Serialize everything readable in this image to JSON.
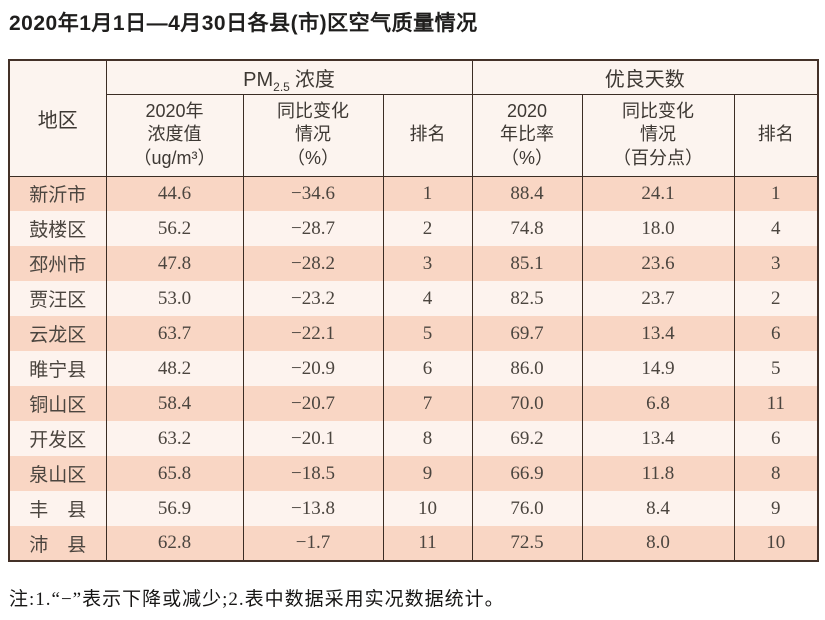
{
  "page": {
    "title": "2020年1月1日—4月30日各县(市)区空气质量情况",
    "note": "注:1.“−”表示下降或减少;2.表中数据采用实况数据统计。"
  },
  "colors": {
    "stripe_dark": "#f9d6c4",
    "stripe_light": "#fdf3ee",
    "header_bg": "#fcf4ef",
    "line": "#3b2d24",
    "frame": "#443128"
  },
  "table": {
    "region_header": "地区",
    "group_pm25": {
      "base": "PM",
      "sub": "2.5",
      "rest": "浓度"
    },
    "group_days": "优良天数",
    "sub_headers": {
      "pm_value": "2020年\n浓度值\n（ug/m³）",
      "pm_change": "同比变化\n情况\n（%）",
      "pm_rank": "排名",
      "days_ratio": "2020\n年比率\n（%）",
      "days_change": "同比变化\n情况\n（百分点）",
      "days_rank": "排名"
    },
    "rows": [
      {
        "region": "新沂市",
        "pm_value": "44.6",
        "pm_change": "−34.6",
        "pm_rank": "1",
        "days_ratio": "88.4",
        "days_change": "24.1",
        "days_rank": "1"
      },
      {
        "region": "鼓楼区",
        "pm_value": "56.2",
        "pm_change": "−28.7",
        "pm_rank": "2",
        "days_ratio": "74.8",
        "days_change": "18.0",
        "days_rank": "4"
      },
      {
        "region": "邳州市",
        "pm_value": "47.8",
        "pm_change": "−28.2",
        "pm_rank": "3",
        "days_ratio": "85.1",
        "days_change": "23.6",
        "days_rank": "3"
      },
      {
        "region": "贾汪区",
        "pm_value": "53.0",
        "pm_change": "−23.2",
        "pm_rank": "4",
        "days_ratio": "82.5",
        "days_change": "23.7",
        "days_rank": "2"
      },
      {
        "region": "云龙区",
        "pm_value": "63.7",
        "pm_change": "−22.1",
        "pm_rank": "5",
        "days_ratio": "69.7",
        "days_change": "13.4",
        "days_rank": "6"
      },
      {
        "region": "睢宁县",
        "pm_value": "48.2",
        "pm_change": "−20.9",
        "pm_rank": "6",
        "days_ratio": "86.0",
        "days_change": "14.9",
        "days_rank": "5"
      },
      {
        "region": "铜山区",
        "pm_value": "58.4",
        "pm_change": "−20.7",
        "pm_rank": "7",
        "days_ratio": "70.0",
        "days_change": "6.8",
        "days_rank": "11"
      },
      {
        "region": "开发区",
        "pm_value": "63.2",
        "pm_change": "−20.1",
        "pm_rank": "8",
        "days_ratio": "69.2",
        "days_change": "13.4",
        "days_rank": "6"
      },
      {
        "region": "泉山区",
        "pm_value": "65.8",
        "pm_change": "−18.5",
        "pm_rank": "9",
        "days_ratio": "66.9",
        "days_change": "11.8",
        "days_rank": "8"
      },
      {
        "region": "丰　县",
        "pm_value": "56.9",
        "pm_change": "−13.8",
        "pm_rank": "10",
        "days_ratio": "76.0",
        "days_change": "8.4",
        "days_rank": "9"
      },
      {
        "region": "沛　县",
        "pm_value": "62.8",
        "pm_change": "−1.7",
        "pm_rank": "11",
        "days_ratio": "72.5",
        "days_change": "8.0",
        "days_rank": "10"
      }
    ]
  }
}
